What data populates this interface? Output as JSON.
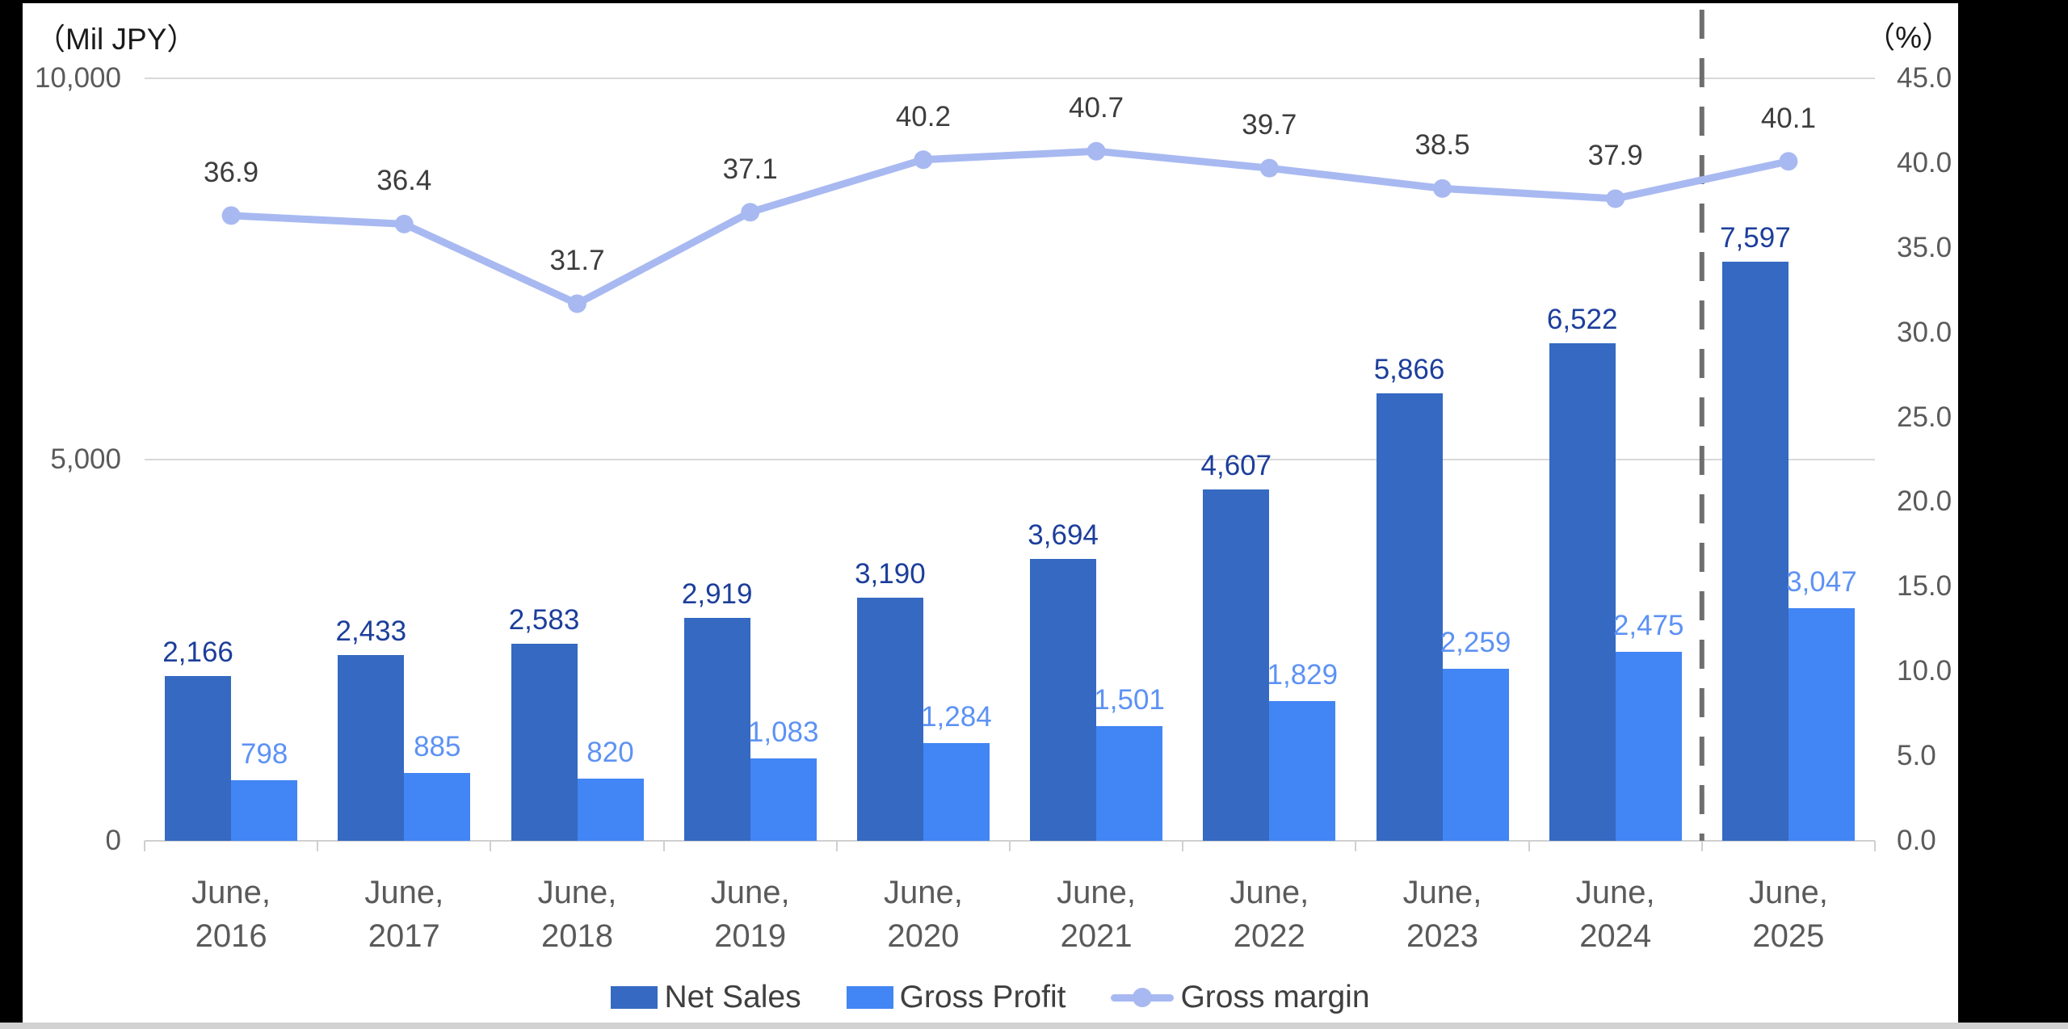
{
  "axes": {
    "left_unit": "（Mil JPY）",
    "right_unit": "（%）"
  },
  "chart_data": {
    "type": "combo-bar-line",
    "categories": [
      "June, 2016",
      "June, 2017",
      "June, 2018",
      "June, 2019",
      "June, 2020",
      "June, 2021",
      "June, 2022",
      "June, 2023",
      "June, 2024",
      "June, 2025"
    ],
    "category_labels": [
      {
        "line1": "June,",
        "line2": "2016"
      },
      {
        "line1": "June,",
        "line2": "2017"
      },
      {
        "line1": "June,",
        "line2": "2018"
      },
      {
        "line1": "June,",
        "line2": "2019"
      },
      {
        "line1": "June,",
        "line2": "2020"
      },
      {
        "line1": "June,",
        "line2": "2021"
      },
      {
        "line1": "June,",
        "line2": "2022"
      },
      {
        "line1": "June,",
        "line2": "2023"
      },
      {
        "line1": "June,",
        "line2": "2024"
      },
      {
        "line1": "June,",
        "line2": "2025"
      }
    ],
    "series": [
      {
        "name": "Net Sales",
        "type": "bar",
        "axis": "left",
        "color": "#3569C2",
        "label_color": "#1C3E9B",
        "values": [
          2166,
          2433,
          2583,
          2919,
          3190,
          3694,
          4607,
          5866,
          6522,
          7597
        ]
      },
      {
        "name": "Gross Profit",
        "type": "bar",
        "axis": "left",
        "color": "#4285F4",
        "label_color": "#5D92F4",
        "values": [
          798,
          885,
          820,
          1083,
          1284,
          1501,
          1829,
          2259,
          2475,
          3047
        ]
      },
      {
        "name": "Gross margin",
        "type": "line",
        "axis": "right",
        "color": "#A8B9F1",
        "label_color": "#3D3D3D",
        "values": [
          36.9,
          36.4,
          31.7,
          37.1,
          40.2,
          40.7,
          39.7,
          38.5,
          37.9,
          40.1
        ]
      }
    ],
    "left_axis": {
      "min": 0,
      "max": 10000,
      "ticks": [
        {
          "value": 10000,
          "label": "10,000",
          "gridline": true
        },
        {
          "value": 5000,
          "label": "5,000",
          "gridline": true
        },
        {
          "value": 0,
          "label": "0",
          "gridline": false
        }
      ]
    },
    "right_axis": {
      "min": 0,
      "max": 45,
      "step": 5,
      "decimals": 1
    },
    "divider": {
      "after_category": "June, 2024",
      "style": "dashed",
      "color": "#6E6E6E"
    },
    "gridline_color": "#D8D8D8",
    "axis_line_color": "#D0D0D0",
    "legend_position": "bottom",
    "grid": "horizontal-only"
  }
}
